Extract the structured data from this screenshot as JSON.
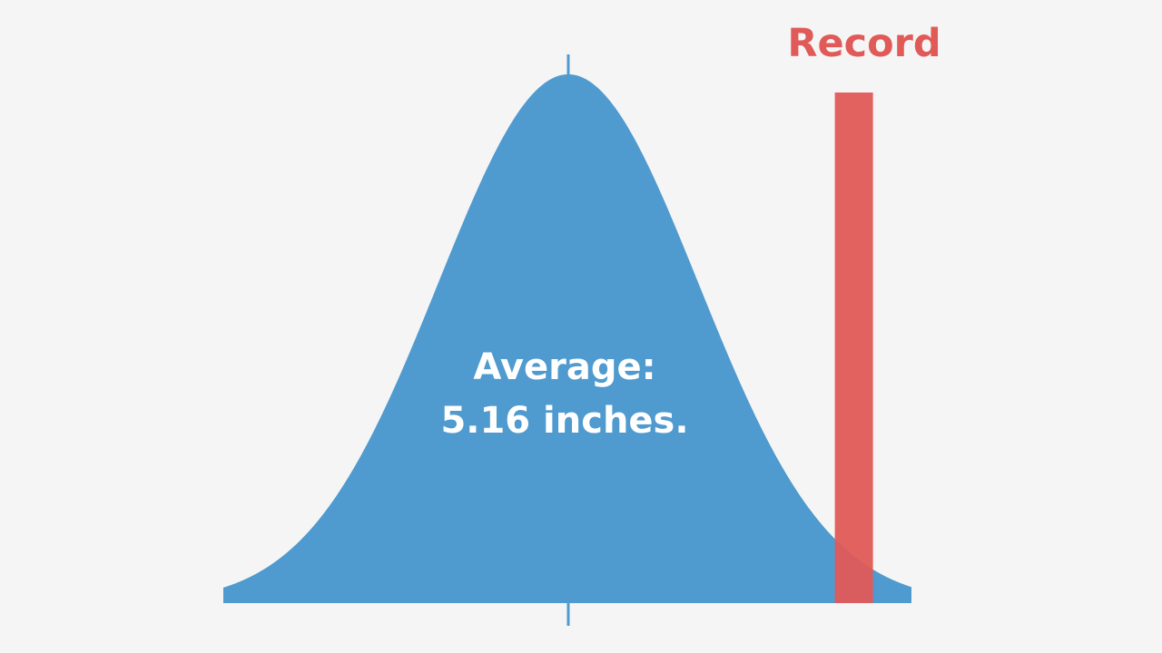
{
  "chart_data": {
    "type": "area",
    "title": "",
    "xlabel": "",
    "ylabel": "",
    "grid": false,
    "legend": "none",
    "distribution": {
      "shape": "normal",
      "mean": 5.16,
      "unit": "inches",
      "color": "#4f9acf"
    },
    "annotations": {
      "average_line1": "Average:",
      "average_line2": "5.16 inches.",
      "record_label": "Record"
    },
    "record": {
      "color": "#e05a57",
      "sigma_from_mean": 2.2
    },
    "axis_color": "#4f9acf",
    "label_color": "#ffffff"
  }
}
